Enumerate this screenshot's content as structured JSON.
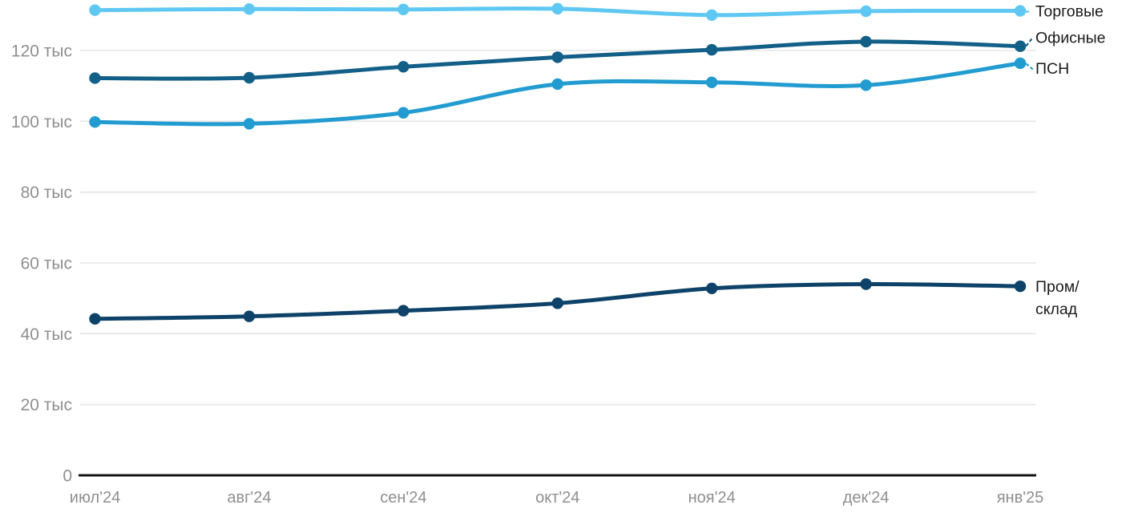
{
  "chart_data": {
    "type": "line",
    "title": "",
    "xlabel": "",
    "ylabel": "",
    "unit_suffix": "тыс",
    "categories": [
      "июл'24",
      "авг'24",
      "сен'24",
      "окт'24",
      "ноя'24",
      "дек'24",
      "янв'25"
    ],
    "y_ticks": [
      {
        "v": 0,
        "label": "0"
      },
      {
        "v": 20,
        "label": "20 тыс"
      },
      {
        "v": 40,
        "label": "40 тыс"
      },
      {
        "v": 60,
        "label": "60 тыс"
      },
      {
        "v": 80,
        "label": "80 тыс"
      },
      {
        "v": 100,
        "label": "100 тыс"
      },
      {
        "v": 120,
        "label": "120 тыс"
      }
    ],
    "ylim": [
      0,
      134
    ],
    "grid": "horizontal-only",
    "legend_position": "right-end-of-lines",
    "series": [
      {
        "name": "Торговые",
        "label_lines": [
          "Торговые"
        ],
        "color": "#5FC8F2",
        "values": [
          131.4,
          131.7,
          131.6,
          131.8,
          130.0,
          131.1,
          131.2
        ],
        "label_dy": 7,
        "connector": true
      },
      {
        "name": "Офисные",
        "label_lines": [
          "Офисные"
        ],
        "color": "#125F88",
        "values": [
          112.2,
          112.3,
          115.4,
          118.1,
          120.2,
          122.5,
          121.2
        ],
        "label_dy": -4,
        "connector": true
      },
      {
        "name": "ПСН",
        "label_lines": [
          "ПСН"
        ],
        "color": "#229CD0",
        "values": [
          99.8,
          99.3,
          102.4,
          110.5,
          111.0,
          110.2,
          116.4
        ],
        "label_dy": 13,
        "connector": true
      },
      {
        "name": "Пром/склад",
        "label_lines": [
          "Пром/",
          "склад"
        ],
        "color": "#0E4268",
        "values": [
          44.2,
          44.9,
          46.5,
          48.6,
          52.8,
          54.0,
          53.4
        ],
        "label_dy": 7,
        "connector": false
      }
    ],
    "colors": {
      "grid": "#E6E6E6",
      "axis": "#141414",
      "tick_text": "#8F8F8F",
      "label_text": "#1A1A1A",
      "background": "#FFFFFF"
    }
  }
}
